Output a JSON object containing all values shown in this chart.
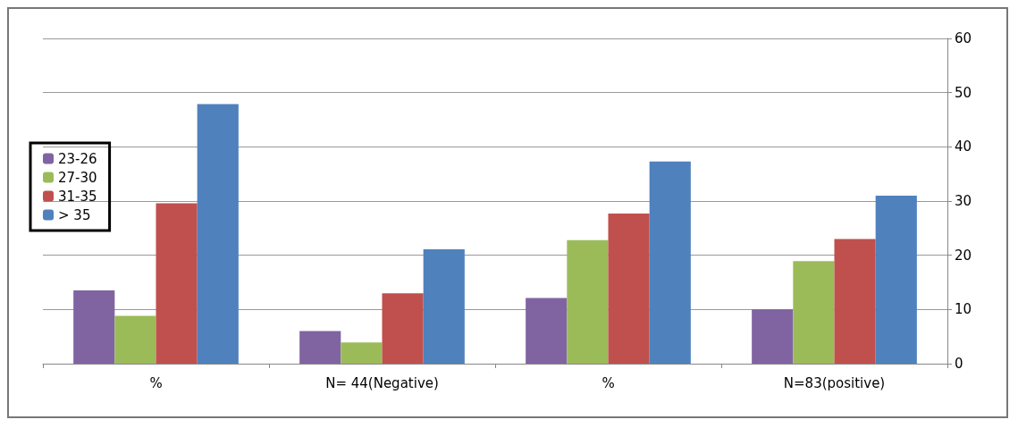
{
  "chart_data": {
    "type": "bar",
    "categories": [
      "%",
      "N= 44(Negative)",
      "%",
      "N=83(positive)"
    ],
    "series": [
      {
        "name": "23-26",
        "color": "#8064a2",
        "values": [
          13.5,
          6.0,
          12.1,
          10.0
        ]
      },
      {
        "name": "27-30",
        "color": "#9bbb59",
        "values": [
          8.8,
          3.9,
          22.8,
          18.9
        ]
      },
      {
        "name": "31-35",
        "color": "#c0504d",
        "values": [
          29.6,
          13.0,
          27.7,
          23.0
        ]
      },
      {
        "name": "> 35",
        "color": "#4f81bd",
        "values": [
          47.9,
          21.1,
          37.3,
          31.0
        ]
      }
    ],
    "ylim": [
      0,
      60
    ],
    "yticks": [
      0,
      10,
      20,
      30,
      40,
      50,
      60
    ],
    "grid": "y",
    "legend": "left"
  }
}
